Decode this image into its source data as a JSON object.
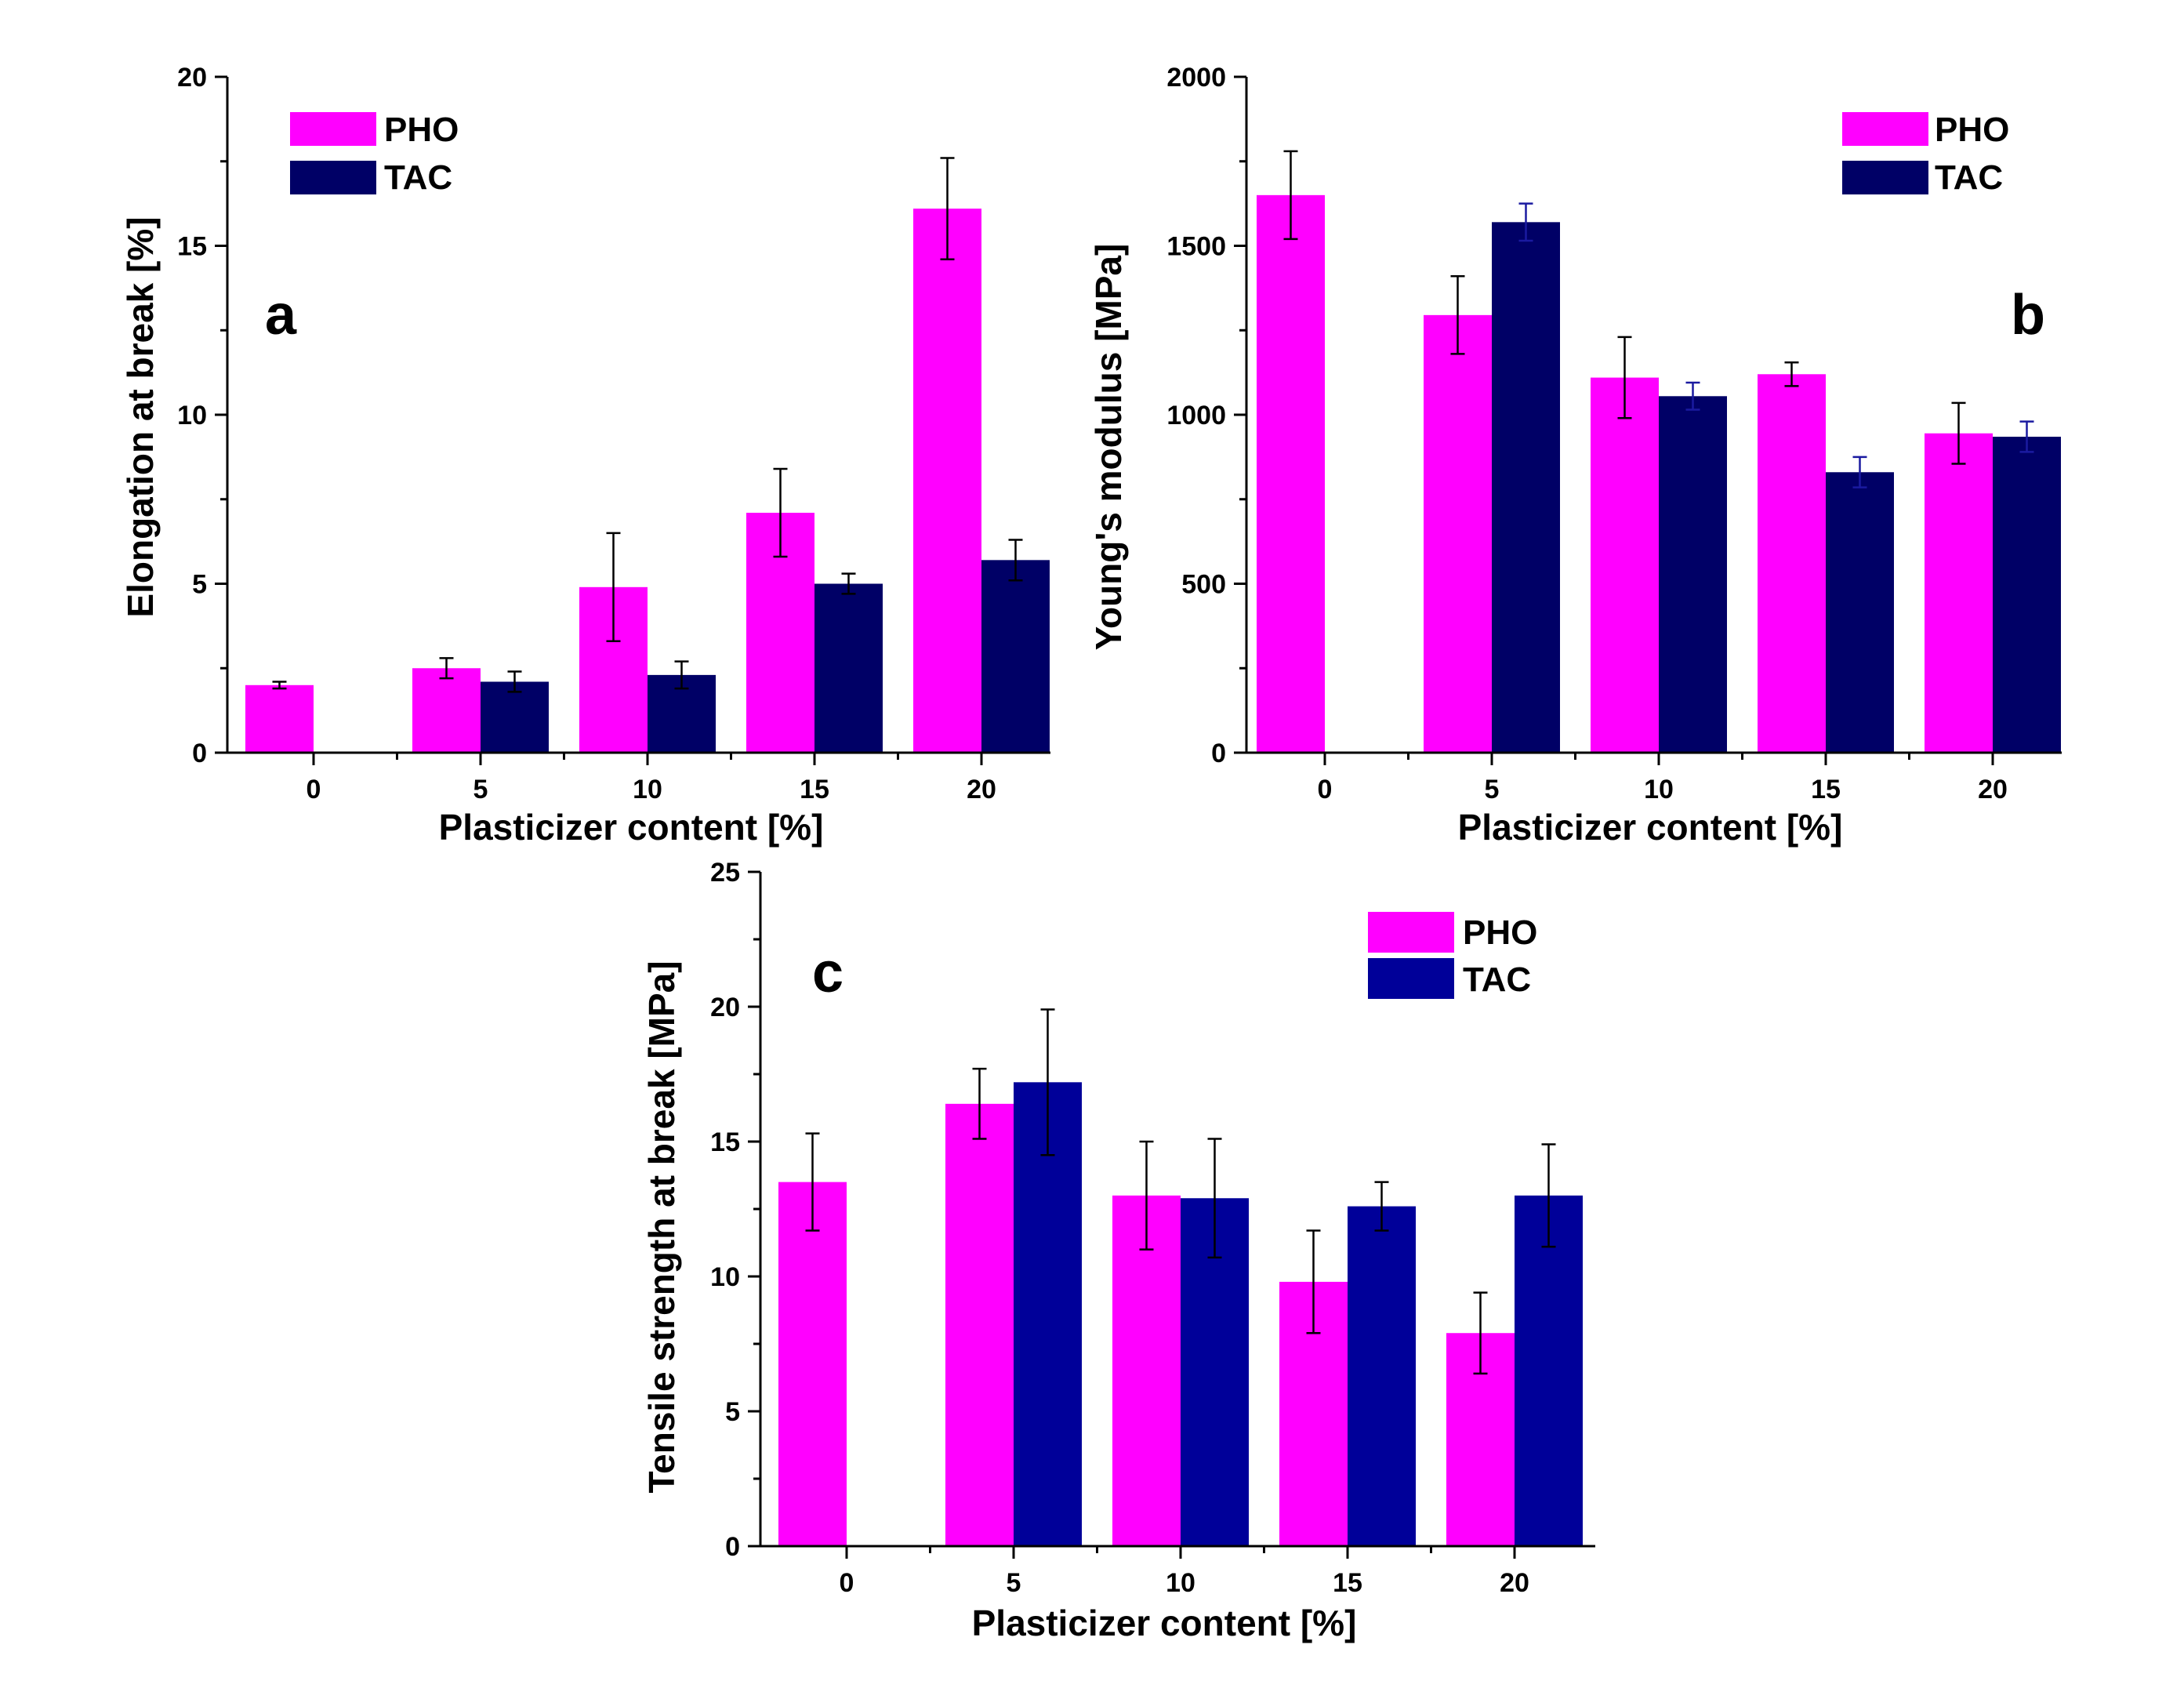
{
  "colors": {
    "pho": "#ff00ff",
    "tac": "#000066",
    "tac_c": "#000099",
    "axis": "#000000"
  },
  "chart_data": [
    {
      "type": "bar",
      "panel_label": "a",
      "categories": [
        "0",
        "5",
        "10",
        "15",
        "20"
      ],
      "xlabel": "Plasticizer content [%]",
      "ylabel": "Elongation at break [%]",
      "ylim": [
        0,
        20
      ],
      "yticks": [
        "0",
        "5",
        "10",
        "15",
        "20"
      ],
      "legend_position": "top-left",
      "series": [
        {
          "name": "PHO",
          "values": [
            2.0,
            2.5,
            4.9,
            7.1,
            16.1
          ],
          "errors": [
            0.1,
            0.3,
            1.6,
            1.3,
            1.5
          ]
        },
        {
          "name": "TAC",
          "values": [
            null,
            2.1,
            2.3,
            5.0,
            5.7
          ],
          "errors": [
            null,
            0.3,
            0.4,
            0.3,
            0.6
          ]
        }
      ]
    },
    {
      "type": "bar",
      "panel_label": "b",
      "categories": [
        "0",
        "5",
        "10",
        "15",
        "20"
      ],
      "xlabel": "Plasticizer content [%]",
      "ylabel": "Young's modulus [MPa]",
      "ylim": [
        0,
        2000
      ],
      "yticks": [
        "0",
        "500",
        "1000",
        "1500",
        "2000"
      ],
      "legend_position": "top-right",
      "series": [
        {
          "name": "PHO",
          "values": [
            1650,
            1295,
            1110,
            1120,
            945
          ],
          "errors": [
            130,
            115,
            120,
            35,
            90
          ]
        },
        {
          "name": "TAC",
          "values": [
            null,
            1570,
            1055,
            830,
            935
          ],
          "errors": [
            null,
            55,
            40,
            45,
            45
          ]
        }
      ]
    },
    {
      "type": "bar",
      "panel_label": "c",
      "categories": [
        "0",
        "5",
        "10",
        "15",
        "20"
      ],
      "xlabel": "Plasticizer content [%]",
      "ylabel": "Tensile strength at break [MPa]",
      "ylim": [
        0,
        25
      ],
      "yticks": [
        "0",
        "5",
        "10",
        "15",
        "20",
        "25"
      ],
      "legend_position": "top-right",
      "series": [
        {
          "name": "PHO",
          "values": [
            13.5,
            16.4,
            13.0,
            9.8,
            7.9
          ],
          "errors": [
            1.8,
            1.3,
            2.0,
            1.9,
            1.5
          ]
        },
        {
          "name": "TAC",
          "values": [
            null,
            17.2,
            12.9,
            12.6,
            13.0
          ],
          "errors": [
            null,
            2.7,
            2.2,
            0.9,
            1.9
          ]
        }
      ]
    }
  ]
}
